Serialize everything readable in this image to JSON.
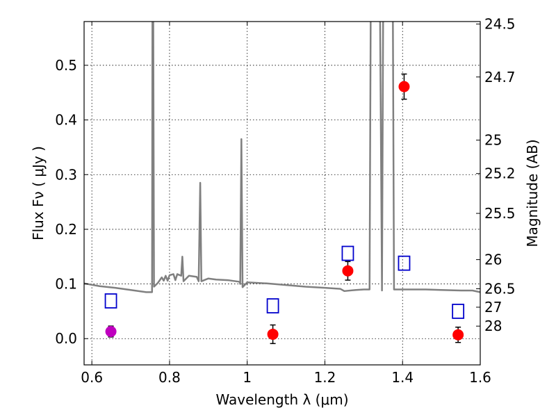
{
  "chart_data": {
    "type": "scatter",
    "title": "",
    "xlabel": "Wavelength  λ (μm)",
    "ylabel": "Flux  Fν  ( μJy )",
    "y2label": "Magnitude (AB)",
    "xlim": [
      0.58,
      1.6
    ],
    "ylim": [
      -0.048,
      0.58
    ],
    "grid": true,
    "x_ticks": [
      0.6,
      0.8,
      1.0,
      1.2,
      1.4,
      1.6
    ],
    "x_tick_labels": [
      "0.6",
      "0.8",
      "1",
      "1.2",
      "1.4",
      "1.6"
    ],
    "y_ticks": [
      0.0,
      0.1,
      0.2,
      0.3,
      0.4,
      0.5
    ],
    "y_tick_labels": [
      "0.0",
      "0.1",
      "0.2",
      "0.3",
      "0.4",
      "0.5"
    ],
    "y2_ticks": [
      {
        "label": "24.5",
        "flux": 0.5754
      },
      {
        "label": "24.7",
        "flux": 0.4786
      },
      {
        "label": "25",
        "flux": 0.3631
      },
      {
        "label": "25.2",
        "flux": 0.302
      },
      {
        "label": "25.5",
        "flux": 0.2291
      },
      {
        "label": "26",
        "flux": 0.1445
      },
      {
        "label": "26.5",
        "flux": 0.0912
      },
      {
        "label": "27",
        "flux": 0.0575
      },
      {
        "label": "28",
        "flux": 0.0229
      }
    ],
    "series": [
      {
        "name": "",
        "kind": "model-spectrum",
        "color": "#808080",
        "points": [
          [
            0.58,
            0.101
          ],
          [
            0.62,
            0.096
          ],
          [
            0.66,
            0.093
          ],
          [
            0.7,
            0.089
          ],
          [
            0.74,
            0.085
          ],
          [
            0.755,
            0.085
          ],
          [
            0.756,
            0.6
          ],
          [
            0.758,
            0.6
          ],
          [
            0.76,
            0.095
          ],
          [
            0.77,
            0.102
          ],
          [
            0.78,
            0.112
          ],
          [
            0.785,
            0.106
          ],
          [
            0.79,
            0.115
          ],
          [
            0.795,
            0.106
          ],
          [
            0.8,
            0.116
          ],
          [
            0.81,
            0.118
          ],
          [
            0.815,
            0.107
          ],
          [
            0.82,
            0.118
          ],
          [
            0.83,
            0.115
          ],
          [
            0.833,
            0.15
          ],
          [
            0.836,
            0.105
          ],
          [
            0.85,
            0.115
          ],
          [
            0.87,
            0.113
          ],
          [
            0.875,
            0.105
          ],
          [
            0.879,
            0.285
          ],
          [
            0.882,
            0.105
          ],
          [
            0.9,
            0.11
          ],
          [
            0.92,
            0.108
          ],
          [
            0.95,
            0.107
          ],
          [
            0.98,
            0.104
          ],
          [
            0.982,
            0.1
          ],
          [
            0.985,
            0.365
          ],
          [
            0.988,
            0.094
          ],
          [
            1.0,
            0.103
          ],
          [
            1.05,
            0.101
          ],
          [
            1.1,
            0.098
          ],
          [
            1.15,
            0.095
          ],
          [
            1.2,
            0.093
          ],
          [
            1.24,
            0.091
          ],
          [
            1.25,
            0.087
          ],
          [
            1.28,
            0.089
          ],
          [
            1.3,
            0.09
          ],
          [
            1.315,
            0.09
          ],
          [
            1.318,
            0.6
          ],
          [
            1.33,
            0.6
          ],
          [
            1.335,
            0.6
          ],
          [
            1.342,
            0.6
          ],
          [
            1.347,
            0.088
          ],
          [
            1.35,
            0.6
          ],
          [
            1.37,
            0.6
          ],
          [
            1.375,
            0.6
          ],
          [
            1.378,
            0.09
          ],
          [
            1.42,
            0.09
          ],
          [
            1.46,
            0.09
          ],
          [
            1.5,
            0.089
          ],
          [
            1.55,
            0.088
          ],
          [
            1.58,
            0.088
          ],
          [
            1.6,
            0.085
          ]
        ]
      },
      {
        "name": "",
        "kind": "open-squares",
        "color": "#0000cc",
        "points": [
          [
            0.649,
            0.069
          ],
          [
            1.066,
            0.06
          ],
          [
            1.259,
            0.156
          ],
          [
            1.404,
            0.138
          ],
          [
            1.543,
            0.05
          ]
        ]
      },
      {
        "name": "",
        "kind": "filled-circles-with-errors",
        "color": "#ff0000",
        "points": [
          {
            "x": 1.066,
            "y": 0.008,
            "err": 0.017
          },
          {
            "x": 1.259,
            "y": 0.124,
            "err": 0.017
          },
          {
            "x": 1.404,
            "y": 0.461,
            "err": 0.023
          },
          {
            "x": 1.543,
            "y": 0.007,
            "err": 0.014
          }
        ]
      },
      {
        "name": "",
        "kind": "filled-circles-with-errors",
        "color": "#bf00bf",
        "points": [
          {
            "x": 0.649,
            "y": 0.013,
            "err": 0.01
          }
        ]
      }
    ]
  }
}
